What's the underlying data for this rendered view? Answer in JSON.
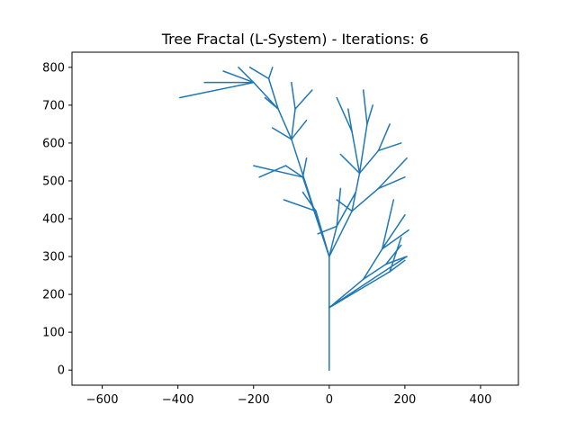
{
  "chart_data": {
    "type": "line",
    "title": "Tree Fractal (L-System) - Iterations: 6",
    "xlabel": "",
    "ylabel": "",
    "xlim": [
      -680,
      500
    ],
    "ylim": [
      -40,
      840
    ],
    "xticks": [
      -600,
      -400,
      -200,
      0,
      200,
      400
    ],
    "yticks": [
      0,
      100,
      200,
      300,
      400,
      500,
      600,
      700,
      800
    ],
    "xtick_labels": [
      "−600",
      "−400",
      "−200",
      "0",
      "200",
      "400"
    ],
    "ytick_labels": [
      "0",
      "100",
      "200",
      "300",
      "400",
      "500",
      "600",
      "700",
      "800"
    ],
    "grid": false,
    "series": [
      {
        "color": "#1f77b4",
        "segments": [
          [
            [
              0,
              0
            ],
            [
              0,
              165
            ]
          ],
          [
            [
              0,
              165
            ],
            [
              0,
              300
            ]
          ],
          [
            [
              0,
              165
            ],
            [
              90,
              240
            ]
          ],
          [
            [
              0,
              165
            ],
            [
              160,
              260
            ]
          ],
          [
            [
              0,
              165
            ],
            [
              205,
              300
            ]
          ],
          [
            [
              0,
              300
            ],
            [
              -100,
              610
            ]
          ],
          [
            [
              0,
              300
            ],
            [
              -70,
              510
            ]
          ],
          [
            [
              0,
              300
            ],
            [
              -35,
              420
            ]
          ],
          [
            [
              0,
              300
            ],
            [
              20,
              380
            ]
          ],
          [
            [
              0,
              300
            ],
            [
              60,
              420
            ]
          ],
          [
            [
              -100,
              610
            ],
            [
              -135,
              690
            ]
          ],
          [
            [
              -100,
              610
            ],
            [
              -90,
              690
            ]
          ],
          [
            [
              -100,
              610
            ],
            [
              -60,
              660
            ]
          ],
          [
            [
              -135,
              690
            ],
            [
              -200,
              760
            ]
          ],
          [
            [
              -135,
              690
            ],
            [
              -160,
              770
            ]
          ],
          [
            [
              -200,
              760
            ],
            [
              -330,
              760
            ]
          ],
          [
            [
              -200,
              760
            ],
            [
              -395,
              720
            ]
          ],
          [
            [
              -200,
              760
            ],
            [
              -280,
              790
            ]
          ],
          [
            [
              -200,
              760
            ],
            [
              -240,
              800
            ]
          ],
          [
            [
              -160,
              770
            ],
            [
              -210,
              800
            ]
          ],
          [
            [
              -160,
              770
            ],
            [
              -150,
              800
            ]
          ],
          [
            [
              -90,
              690
            ],
            [
              -100,
              760
            ]
          ],
          [
            [
              -90,
              690
            ],
            [
              -45,
              740
            ]
          ],
          [
            [
              -70,
              510
            ],
            [
              -115,
              540
            ]
          ],
          [
            [
              -70,
              510
            ],
            [
              -200,
              540
            ]
          ],
          [
            [
              -115,
              540
            ],
            [
              -185,
              510
            ]
          ],
          [
            [
              -35,
              420
            ],
            [
              -120,
              450
            ]
          ],
          [
            [
              -35,
              420
            ],
            [
              -70,
              470
            ]
          ],
          [
            [
              20,
              380
            ],
            [
              30,
              480
            ]
          ],
          [
            [
              20,
              380
            ],
            [
              70,
              470
            ]
          ],
          [
            [
              60,
              420
            ],
            [
              80,
              520
            ]
          ],
          [
            [
              60,
              420
            ],
            [
              130,
              480
            ]
          ],
          [
            [
              80,
              520
            ],
            [
              60,
              630
            ]
          ],
          [
            [
              80,
              520
            ],
            [
              100,
              650
            ]
          ],
          [
            [
              60,
              630
            ],
            [
              20,
              720
            ]
          ],
          [
            [
              60,
              630
            ],
            [
              50,
              690
            ]
          ],
          [
            [
              100,
              650
            ],
            [
              90,
              740
            ]
          ],
          [
            [
              100,
              650
            ],
            [
              115,
              700
            ]
          ],
          [
            [
              80,
              520
            ],
            [
              30,
              570
            ]
          ],
          [
            [
              80,
              520
            ],
            [
              130,
              580
            ]
          ],
          [
            [
              130,
              580
            ],
            [
              160,
              650
            ]
          ],
          [
            [
              130,
              580
            ],
            [
              190,
              600
            ]
          ],
          [
            [
              130,
              480
            ],
            [
              205,
              560
            ]
          ],
          [
            [
              130,
              480
            ],
            [
              200,
              510
            ]
          ],
          [
            [
              90,
              240
            ],
            [
              150,
              280
            ]
          ],
          [
            [
              90,
              240
            ],
            [
              140,
              320
            ]
          ],
          [
            [
              150,
              280
            ],
            [
              190,
              330
            ]
          ],
          [
            [
              150,
              280
            ],
            [
              205,
              300
            ]
          ],
          [
            [
              140,
              320
            ],
            [
              210,
              370
            ]
          ],
          [
            [
              140,
              320
            ],
            [
              200,
              410
            ]
          ],
          [
            [
              140,
              320
            ],
            [
              170,
              450
            ]
          ],
          [
            [
              160,
              260
            ],
            [
              200,
              290
            ]
          ],
          [
            [
              160,
              260
            ],
            [
              190,
              350
            ]
          ],
          [
            [
              20,
              380
            ],
            [
              -30,
              360
            ]
          ],
          [
            [
              60,
              420
            ],
            [
              20,
              450
            ]
          ],
          [
            [
              -70,
              510
            ],
            [
              -60,
              560
            ]
          ],
          [
            [
              -100,
              610
            ],
            [
              -150,
              640
            ]
          ],
          [
            [
              -135,
              690
            ],
            [
              -170,
              720
            ]
          ]
        ]
      }
    ]
  }
}
